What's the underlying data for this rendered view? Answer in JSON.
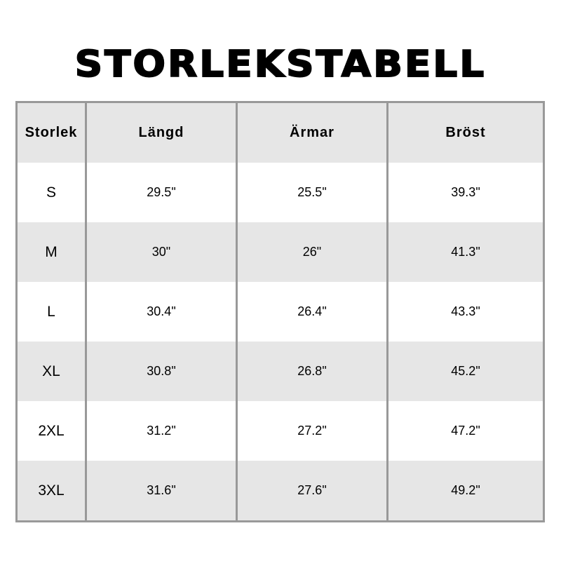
{
  "title": "STORLEKSTABELL",
  "headers": [
    "Storlek",
    "Längd",
    "Ärmar",
    "Bröst"
  ],
  "rows": [
    [
      "S",
      "29.5\"",
      "25.5\"",
      "39.3\""
    ],
    [
      "M",
      "30\"",
      "26\"",
      "41.3\""
    ],
    [
      "L",
      "30.4\"",
      "26.4\"",
      "43.3\""
    ],
    [
      "XL",
      "30.8\"",
      "26.8\"",
      "45.2\""
    ],
    [
      "2XL",
      "31.2\"",
      "27.2\"",
      "47.2\""
    ],
    [
      "3XL",
      "31.6\"",
      "27.6\"",
      "49.2\""
    ]
  ]
}
